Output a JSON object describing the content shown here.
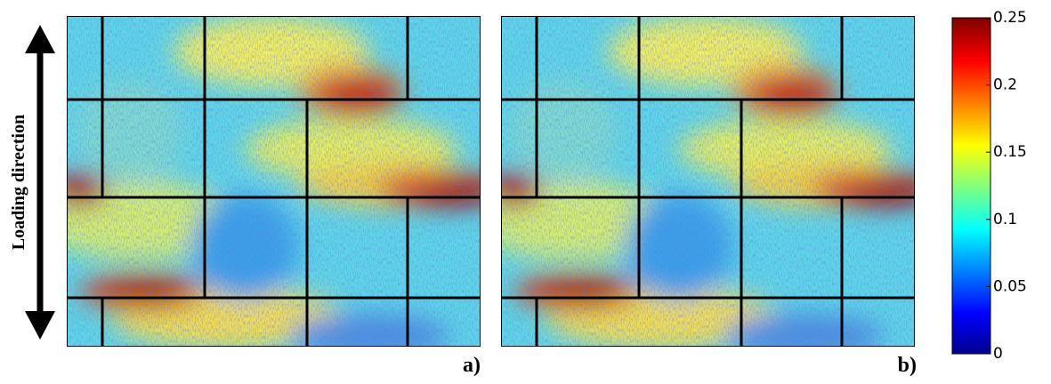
{
  "annotation": "Loading direction",
  "panels": [
    {
      "label": "a)"
    },
    {
      "label": "b)"
    }
  ],
  "colorbar": {
    "range": [
      0,
      0.25
    ],
    "ticks": [
      0,
      0.05,
      0.1,
      0.15,
      0.2,
      0.25
    ]
  }
}
